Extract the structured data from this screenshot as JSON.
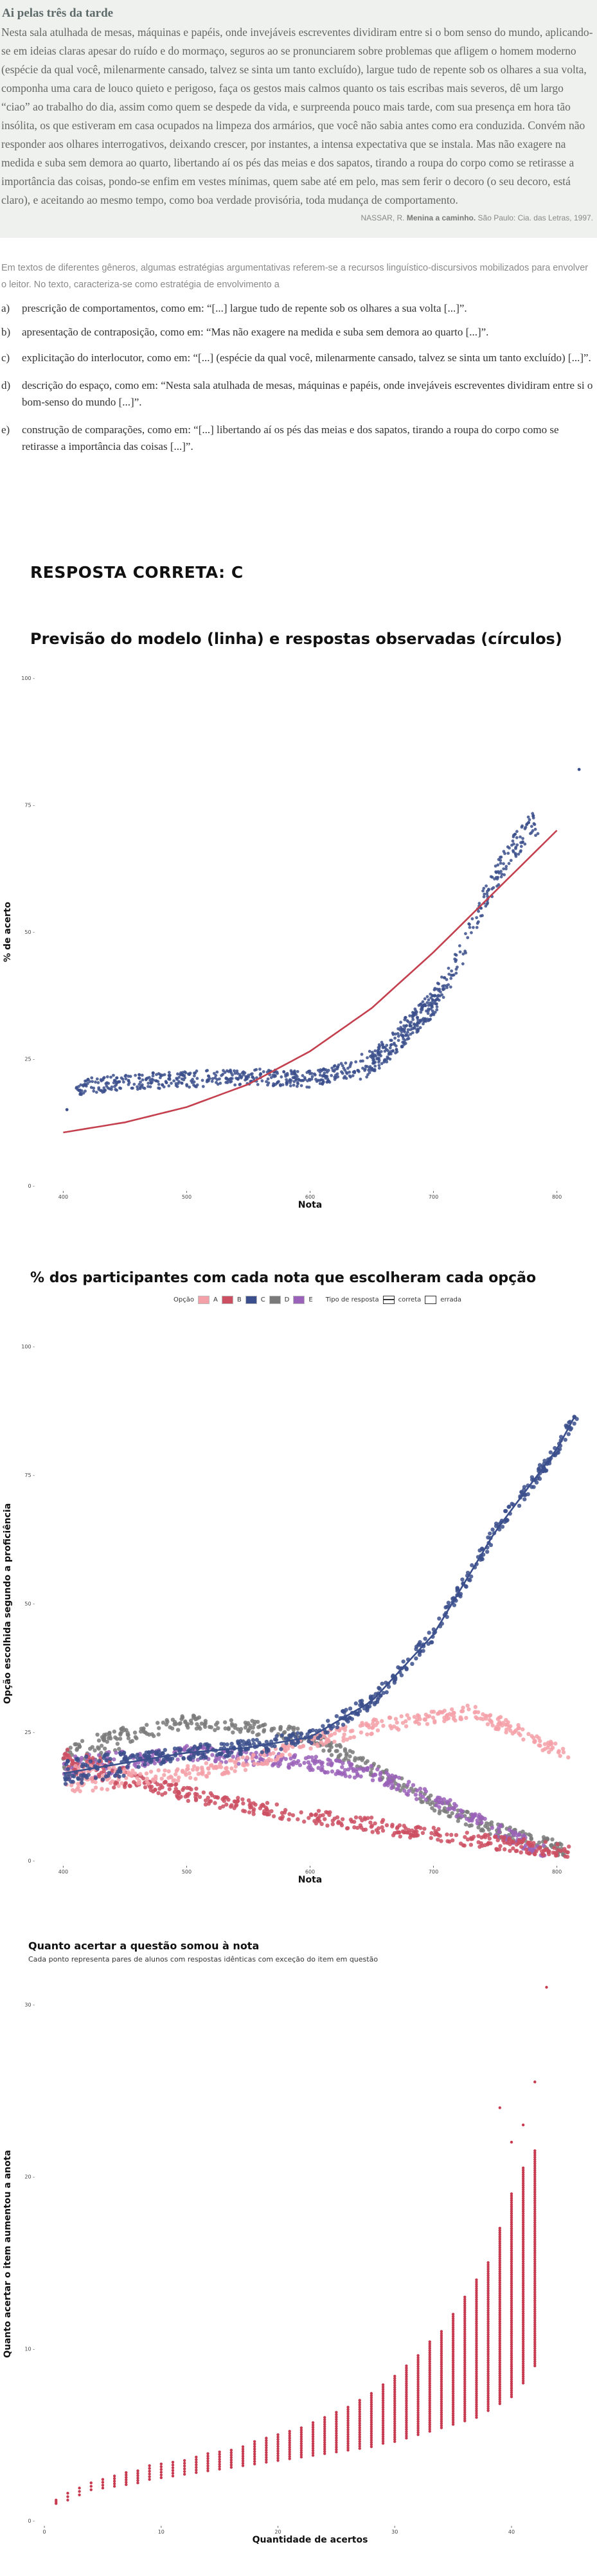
{
  "question": {
    "title": "Ai pelas três da tarde",
    "body": "Nesta sala atulhada de mesas, máquinas e papéis, onde invejáveis escreventes dividiram entre si o bom senso do mundo, aplicando-se em ideias claras apesar do ruído e do mormaço, seguros ao se pronunciarem sobre problemas que afligem o homem moderno (espécie da qual você, milenarmente cansado, talvez se sinta um tanto excluído), largue tudo de repente sob os olhares a sua volta, componha uma cara de louco quieto e perigoso, faça os gestos mais calmos quanto os tais escribas mais severos, dê um largo “ciao” ao trabalho do dia, assim como quem se despede da vida, e surpreenda pouco mais tarde, com sua presença em hora tão insólita, os que estiveram em casa ocupados na limpeza dos armários, que você não sabia antes como era conduzida. Convém não responder aos olhares interrogativos, deixando crescer, por instantes, a intensa expectativa que se instala. Mas não exagere na medida e suba sem demora ao quarto, libertando aí os pés das meias e dos sapatos, tirando a roupa do corpo como se retirasse a importância das coisas, pondo-se enfim em vestes mínimas, quem sabe até em pelo, mas sem ferir o decoro (o seu decoro, está claro), e aceitando ao mesmo tempo, como boa verdade provisória, toda mudança de comportamento.",
    "source_author": "NASSAR, R.",
    "source_title": "Menina a caminho.",
    "source_rest": "São Paulo: Cia. das Letras, 1997.",
    "prompt": "Em textos de diferentes gêneros, algumas estratégias argumentativas referem-se a recursos linguístico-discursivos mobilizados para envolver o leitor. No texto, caracteriza-se como estratégia de envolvimento a",
    "options": [
      {
        "letter": "a)",
        "text": "prescrição de comportamentos, como em: “[...] largue tudo de repente sob os olhares a sua volta [...]”."
      },
      {
        "letter": "b)",
        "text": "apresentação de contraposição, como em: “Mas não exagere na medida e suba sem demora ao quarto [...]”."
      },
      {
        "letter": "c)",
        "text": "explicitação do interlocutor, como em: “[...] (espécie da qual você, milenarmente cansado, talvez se sinta um tanto excluído) [...]”."
      },
      {
        "letter": "d)",
        "text": "descrição do espaço, como em: “Nesta sala atulhada de mesas, máquinas e papéis, onde invejáveis escreventes dividiram entre si o bom-senso do mundo [...]”."
      },
      {
        "letter": "e)",
        "text": "construção de comparações, como em: “[...] libertando aí os pés das meias e dos sapatos, tirando a roupa do corpo como se retirasse a importância das coisas [...]”."
      }
    ],
    "answer": "RESPOSTA CORRETA: C"
  },
  "chart_data": [
    {
      "type": "scatter",
      "title": "Previsão do modelo (linha) e respostas observadas (círculos)",
      "xlabel": "Nota",
      "ylabel": "% de acerto",
      "xlim": [
        380,
        820
      ],
      "ylim": [
        0,
        100
      ],
      "xticks": [
        400,
        500,
        600,
        700,
        800
      ],
      "yticks": [
        0,
        25,
        50,
        75,
        100
      ],
      "ytick_labels": [
        "0 -",
        "25 -",
        "50 -",
        "75 -",
        "100 -"
      ],
      "colors": {
        "observed": "#3b4f8c",
        "model": "#c4404e"
      },
      "series": [
        {
          "kind": "model-line",
          "x": [
            400,
            450,
            500,
            550,
            600,
            650,
            700,
            750,
            800
          ],
          "y": [
            10.5,
            12.5,
            15.5,
            20,
            26.5,
            35,
            46,
            58,
            70
          ]
        },
        {
          "kind": "observed-curve",
          "x": [
            400,
            450,
            500,
            550,
            600,
            650,
            700,
            720,
            740,
            760,
            780
          ],
          "y": [
            19,
            20.5,
            21,
            21.5,
            21,
            24,
            36,
            44,
            56,
            65,
            71
          ]
        }
      ],
      "outliers": [
        {
          "x": 818,
          "y": 82
        },
        {
          "x": 403,
          "y": 15
        }
      ]
    },
    {
      "type": "scatter",
      "title": "% dos participantes com cada nota que escolheram cada opção",
      "xlabel": "Nota",
      "ylabel": "Opção escolhida segundo a proficiência",
      "xlim": [
        380,
        820
      ],
      "ylim": [
        0,
        100
      ],
      "xticks": [
        400,
        500,
        600,
        700,
        800
      ],
      "yticks": [
        0,
        25,
        50,
        75,
        100
      ],
      "ytick_labels": [
        "0 -",
        "25 -",
        "50 -",
        "75 -",
        "100 -"
      ],
      "legend": {
        "option_label": "Opção",
        "options": [
          "A",
          "B",
          "C",
          "D",
          "E"
        ],
        "type_label": "Tipo de resposta",
        "correct": "correta",
        "wrong": "errada"
      },
      "series": [
        {
          "name": "A",
          "color": "#f4a0a8",
          "x": [
            400,
            450,
            500,
            550,
            600,
            650,
            700,
            730,
            750,
            780,
            810
          ],
          "y": [
            16,
            16,
            17,
            19,
            23,
            26,
            28,
            29,
            27,
            24,
            20
          ]
        },
        {
          "name": "B",
          "color": "#cc4f62",
          "x": [
            400,
            450,
            500,
            550,
            600,
            650,
            700,
            750,
            800,
            810
          ],
          "y": [
            20,
            16,
            13,
            10.5,
            8.5,
            7,
            5,
            3.5,
            2,
            1.5
          ]
        },
        {
          "name": "C",
          "color": "#3b4f8c",
          "x": [
            400,
            450,
            500,
            550,
            600,
            650,
            700,
            750,
            800,
            818
          ],
          "y": [
            17,
            19,
            21,
            22,
            24,
            31,
            44,
            64,
            80,
            88
          ]
        },
        {
          "name": "D",
          "color": "#7a7a7a",
          "x": [
            400,
            450,
            500,
            550,
            600,
            650,
            700,
            750,
            800,
            810
          ],
          "y": [
            20,
            24,
            27,
            26,
            24,
            18,
            11,
            6,
            2.5,
            2
          ]
        },
        {
          "name": "E",
          "color": "#9a62b8",
          "x": [
            400,
            450,
            500,
            550,
            600,
            650,
            700,
            750,
            790
          ],
          "y": [
            18,
            19,
            21,
            20,
            19,
            17,
            12,
            6,
            2
          ]
        }
      ]
    },
    {
      "type": "scatter",
      "title": "Quanto acertar a questão somou à nota",
      "subtitle": "Cada ponto representa pares de alunos com respostas idênticas com exceção do item em questão",
      "xlabel": "Quantidade de acertos",
      "ylabel": "Quanto acertar o item aumentou a anota",
      "xlim": [
        -0.5,
        46
      ],
      "ylim": [
        0,
        31
      ],
      "xticks": [
        0,
        10,
        20,
        30,
        40
      ],
      "yticks": [
        0,
        10,
        20,
        30
      ],
      "ytick_labels": [
        "0 -",
        "10 -",
        "20 -",
        "30 -"
      ],
      "color": "#c83a50",
      "columns": [
        {
          "x": 1,
          "lo": 1.0,
          "hi": 1.2
        },
        {
          "x": 2,
          "lo": 1.2,
          "hi": 1.6
        },
        {
          "x": 3,
          "lo": 1.5,
          "hi": 1.9
        },
        {
          "x": 4,
          "lo": 1.8,
          "hi": 2.2
        },
        {
          "x": 5,
          "lo": 1.9,
          "hi": 2.4
        },
        {
          "x": 6,
          "lo": 2.0,
          "hi": 2.6
        },
        {
          "x": 7,
          "lo": 2.1,
          "hi": 2.8
        },
        {
          "x": 8,
          "lo": 2.2,
          "hi": 2.9
        },
        {
          "x": 9,
          "lo": 2.4,
          "hi": 3.2
        },
        {
          "x": 10,
          "lo": 2.5,
          "hi": 3.3
        },
        {
          "x": 11,
          "lo": 2.6,
          "hi": 3.4
        },
        {
          "x": 12,
          "lo": 2.7,
          "hi": 3.5
        },
        {
          "x": 13,
          "lo": 2.8,
          "hi": 3.7
        },
        {
          "x": 14,
          "lo": 2.9,
          "hi": 3.9
        },
        {
          "x": 15,
          "lo": 3.0,
          "hi": 4.0
        },
        {
          "x": 16,
          "lo": 3.1,
          "hi": 4.1
        },
        {
          "x": 17,
          "lo": 3.2,
          "hi": 4.3
        },
        {
          "x": 18,
          "lo": 3.3,
          "hi": 4.6
        },
        {
          "x": 19,
          "lo": 3.4,
          "hi": 4.8
        },
        {
          "x": 20,
          "lo": 3.5,
          "hi": 5.0
        },
        {
          "x": 21,
          "lo": 3.6,
          "hi": 5.2
        },
        {
          "x": 22,
          "lo": 3.7,
          "hi": 5.4
        },
        {
          "x": 23,
          "lo": 3.8,
          "hi": 5.7
        },
        {
          "x": 24,
          "lo": 3.9,
          "hi": 6.0
        },
        {
          "x": 25,
          "lo": 4.0,
          "hi": 6.3
        },
        {
          "x": 26,
          "lo": 4.1,
          "hi": 6.6
        },
        {
          "x": 27,
          "lo": 4.2,
          "hi": 7.0
        },
        {
          "x": 28,
          "lo": 4.3,
          "hi": 7.4
        },
        {
          "x": 29,
          "lo": 4.5,
          "hi": 7.9
        },
        {
          "x": 30,
          "lo": 4.6,
          "hi": 8.4
        },
        {
          "x": 31,
          "lo": 4.8,
          "hi": 9.0
        },
        {
          "x": 32,
          "lo": 5.0,
          "hi": 9.6
        },
        {
          "x": 33,
          "lo": 5.2,
          "hi": 10.4
        },
        {
          "x": 34,
          "lo": 5.4,
          "hi": 11.0
        },
        {
          "x": 35,
          "lo": 5.6,
          "hi": 12.0
        },
        {
          "x": 36,
          "lo": 5.8,
          "hi": 13.0
        },
        {
          "x": 37,
          "lo": 6.0,
          "hi": 14.0
        },
        {
          "x": 38,
          "lo": 6.4,
          "hi": 15.0
        },
        {
          "x": 39,
          "lo": 6.8,
          "hi": 17.0
        },
        {
          "x": 40,
          "lo": 7.2,
          "hi": 19.0
        },
        {
          "x": 41,
          "lo": 8.0,
          "hi": 20.5
        },
        {
          "x": 42,
          "lo": 9.0,
          "hi": 21.5
        }
      ],
      "outliers": [
        {
          "x": 42,
          "y": 25.5
        },
        {
          "x": 43,
          "y": 31
        },
        {
          "x": 41,
          "y": 23
        },
        {
          "x": 39,
          "y": 24
        },
        {
          "x": 40,
          "y": 22
        }
      ]
    }
  ]
}
